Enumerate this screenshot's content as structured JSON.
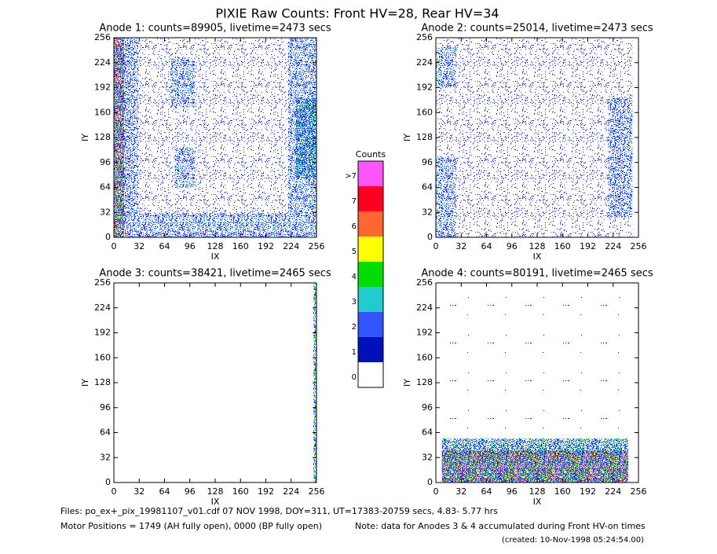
{
  "title": "PIXIE Raw Counts:  Front HV=28, Rear HV=34",
  "chart_data": [
    {
      "type": "heatmap",
      "title": "Anode 1: counts=89905, livetime=2473 secs",
      "x_label": "IX",
      "y_label": "IY",
      "xlim": [
        0,
        256
      ],
      "ylim": [
        0,
        256
      ],
      "xticks": [
        0,
        32,
        64,
        96,
        128,
        160,
        192,
        224,
        256
      ],
      "yticks": [
        0,
        32,
        64,
        96,
        128,
        160,
        192,
        224,
        256
      ]
    },
    {
      "type": "heatmap",
      "title": "Anode 2: counts=25014, livetime=2473 secs",
      "x_label": "IX",
      "y_label": "IY",
      "xlim": [
        0,
        256
      ],
      "ylim": [
        0,
        256
      ],
      "xticks": [
        0,
        32,
        64,
        96,
        128,
        160,
        192,
        224,
        256
      ],
      "yticks": [
        0,
        32,
        64,
        96,
        128,
        160,
        192,
        224,
        256
      ]
    },
    {
      "type": "heatmap",
      "title": "Anode 3: counts=38421, livetime=2465 secs",
      "x_label": "IX",
      "y_label": "IY",
      "xlim": [
        0,
        256
      ],
      "ylim": [
        0,
        256
      ],
      "xticks": [
        0,
        32,
        64,
        96,
        128,
        160,
        192,
        224,
        256
      ],
      "yticks": [
        0,
        32,
        64,
        96,
        128,
        160,
        192,
        224,
        256
      ]
    },
    {
      "type": "heatmap",
      "title": "Anode 4: counts=80191, livetime=2465 secs",
      "x_label": "IX",
      "y_label": "IY",
      "xlim": [
        0,
        256
      ],
      "ylim": [
        0,
        256
      ],
      "xticks": [
        0,
        32,
        64,
        96,
        128,
        160,
        192,
        224,
        256
      ],
      "yticks": [
        0,
        32,
        64,
        96,
        128,
        160,
        192,
        224,
        256
      ]
    }
  ],
  "colorbar": {
    "title": "Counts",
    "levels": [
      {
        "label": ">7",
        "color": "#ff55ff"
      },
      {
        "label": "7",
        "color": "#ff0022"
      },
      {
        "label": "6",
        "color": "#ff6633"
      },
      {
        "label": "5",
        "color": "#ffff00"
      },
      {
        "label": "4",
        "color": "#00dd00"
      },
      {
        "label": "3",
        "color": "#22cccc"
      },
      {
        "label": "2",
        "color": "#3355ff"
      },
      {
        "label": "1",
        "color": "#0011bb"
      },
      {
        "label": "0",
        "color": "#ffffff"
      }
    ]
  },
  "footer": {
    "files": "Files: po_ex+_pix_19981107_v01.cdf    07 NOV 1998, DOY=311, UT=17383-20759 secs,  4.83- 5.77 hrs",
    "motor": "Motor Positions = 1749 (AH fully open), 0000 (BP fully open)",
    "note": "Note: data for Anodes 3 & 4 accumulated during Front HV-on times",
    "created": "(created: 10-Nov-1998 05:24:54.00)"
  }
}
